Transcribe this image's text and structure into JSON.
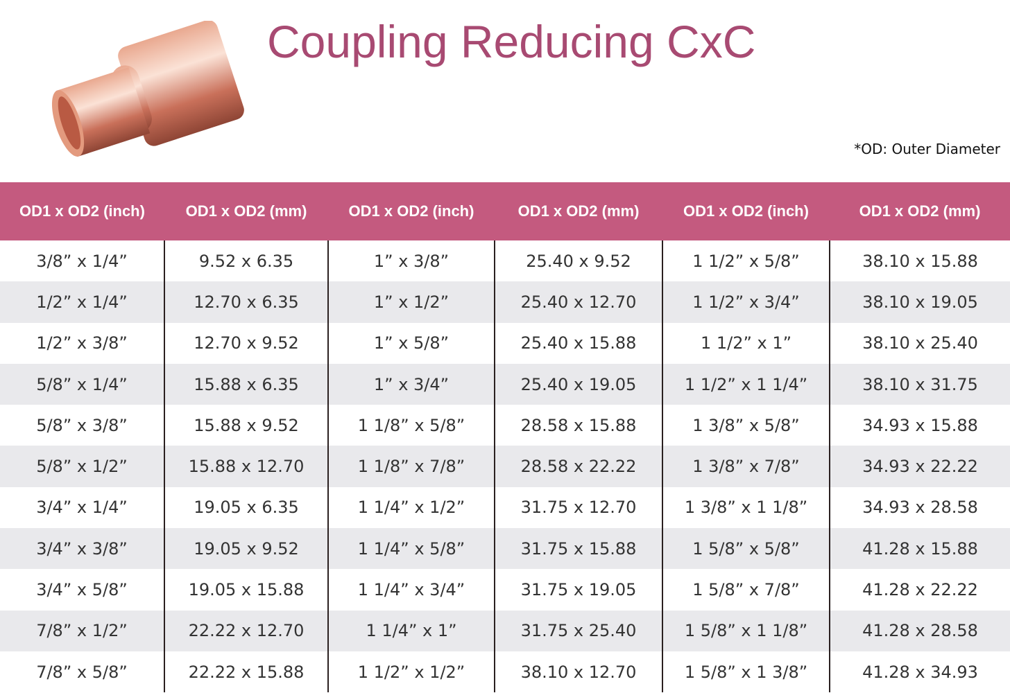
{
  "header": {
    "title": "Coupling Reducing CxC",
    "note": "*OD: Outer Diameter"
  },
  "table": {
    "columns": [
      "OD1 x OD2 (inch)",
      "OD1 x OD2 (mm)",
      "OD1 x OD2 (inch)",
      "OD1 x OD2 (mm)",
      "OD1 x OD2 (inch)",
      "OD1 x OD2 (mm)"
    ],
    "rows": [
      [
        "3/8” x 1/4”",
        "9.52 x 6.35",
        "1” x 3/8”",
        "25.40 x 9.52",
        "1 1/2” x 5/8”",
        "38.10 x 15.88"
      ],
      [
        "1/2” x 1/4”",
        "12.70 x 6.35",
        "1” x 1/2”",
        "25.40 x 12.70",
        "1 1/2” x 3/4”",
        "38.10 x 19.05"
      ],
      [
        "1/2” x 3/8”",
        "12.70 x 9.52",
        "1” x 5/8”",
        "25.40 x 15.88",
        "1 1/2” x 1”",
        "38.10 x 25.40"
      ],
      [
        "5/8” x 1/4”",
        "15.88 x 6.35",
        "1” x 3/4”",
        "25.40 x 19.05",
        "1 1/2” x 1 1/4”",
        "38.10 x 31.75"
      ],
      [
        "5/8” x 3/8”",
        "15.88 x 9.52",
        "1 1/8” x 5/8”",
        "28.58 x 15.88",
        "1 3/8” x 5/8”",
        "34.93 x 15.88"
      ],
      [
        "5/8” x 1/2”",
        "15.88 x 12.70",
        "1 1/8” x 7/8”",
        "28.58 x 22.22",
        "1 3/8” x 7/8”",
        "34.93 x 22.22"
      ],
      [
        "3/4” x 1/4”",
        "19.05 x 6.35",
        "1 1/4” x 1/2”",
        "31.75 x 12.70",
        "1 3/8” x 1 1/8”",
        "34.93 x 28.58"
      ],
      [
        "3/4” x 3/8”",
        "19.05 x 9.52",
        "1 1/4” x 5/8”",
        "31.75 x 15.88",
        "1 5/8” x 5/8”",
        "41.28 x 15.88"
      ],
      [
        "3/4” x 5/8”",
        "19.05 x 15.88",
        "1 1/4” x 3/4”",
        "31.75 x 19.05",
        "1 5/8” x 7/8”",
        "41.28 x 22.22"
      ],
      [
        "7/8” x 1/2”",
        "22.22 x 12.70",
        "1 1/4” x 1”",
        "31.75 x 25.40",
        "1 5/8” x 1 1/8”",
        "41.28 x 28.58"
      ],
      [
        "7/8” x 5/8”",
        "22.22 x 15.88",
        "1 1/2” x 1/2”",
        "38.10 x 12.70",
        "1 5/8” x 1 3/8”",
        "41.28 x 34.93"
      ]
    ]
  }
}
